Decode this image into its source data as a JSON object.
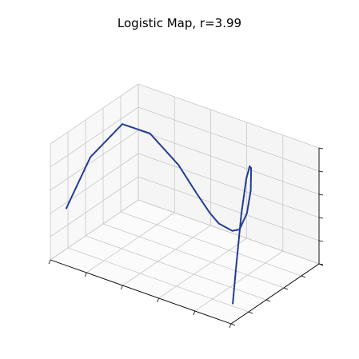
{
  "chart_data": {
    "type": "scatter",
    "projection": "3d",
    "title": "Logistic Map, r=3.99",
    "r": 3.99,
    "xlabel": "",
    "ylabel": "",
    "zlabel": "",
    "tick_labels": "none",
    "grid": true,
    "xlim": [
      0,
      1
    ],
    "ylim": [
      0,
      1
    ],
    "zlim": [
      0,
      1
    ],
    "marker_color": "#1f3a93",
    "series": [
      {
        "points": [
          [
            0.03,
            0.12,
            0.4
          ],
          [
            0.08,
            0.29,
            0.78
          ],
          [
            0.15,
            0.51,
            0.99
          ],
          [
            0.22,
            0.68,
            0.86
          ],
          [
            0.3,
            0.84,
            0.55
          ],
          [
            0.36,
            0.92,
            0.3
          ],
          [
            0.41,
            0.97,
            0.13
          ],
          [
            0.45,
            0.99,
            0.05
          ],
          [
            0.52,
            1.0,
            0.02
          ],
          [
            0.57,
            0.98,
            0.07
          ],
          [
            0.64,
            0.92,
            0.28
          ],
          [
            0.7,
            0.84,
            0.55
          ],
          [
            0.78,
            0.68,
            0.87
          ],
          [
            0.84,
            0.54,
            0.99
          ],
          [
            0.88,
            0.42,
            0.97
          ],
          [
            0.93,
            0.26,
            0.77
          ],
          [
            0.97,
            0.12,
            0.42
          ],
          [
            0.99,
            0.04,
            0.15
          ]
        ]
      }
    ]
  }
}
